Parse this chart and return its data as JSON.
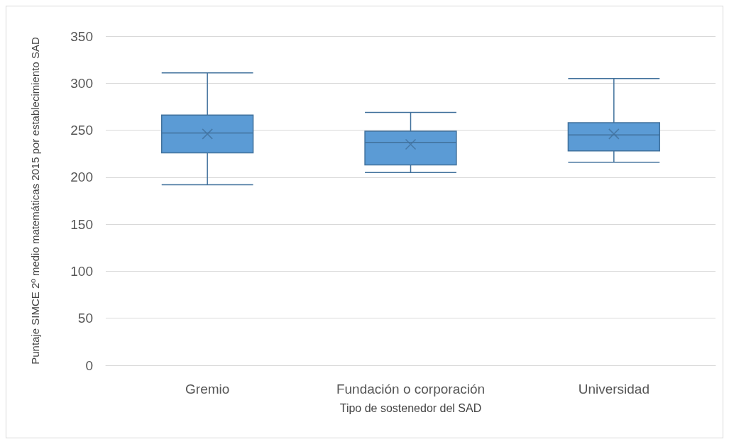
{
  "chart_data": {
    "type": "box",
    "xlabel": "Tipo de sostenedor del SAD",
    "ylabel": "Puntaje SIMCE 2º medio matemáticas 2015 por establecimiento SAD",
    "categories": [
      "Gremio",
      "Fundación o corporación",
      "Universidad"
    ],
    "boxes": [
      {
        "low": 192,
        "q1": 226,
        "median": 247,
        "q3": 266,
        "high": 311,
        "mean": 246
      },
      {
        "low": 205,
        "q1": 213,
        "median": 237,
        "q3": 249,
        "high": 269,
        "mean": 235
      },
      {
        "low": 216,
        "q1": 228,
        "median": 245,
        "q3": 258,
        "high": 305,
        "mean": 246
      }
    ],
    "color": "#5b9bd5",
    "ylim": [
      0,
      350
    ],
    "yticks": [
      0,
      50,
      100,
      150,
      200,
      250,
      300,
      350
    ],
    "grid": "y"
  }
}
